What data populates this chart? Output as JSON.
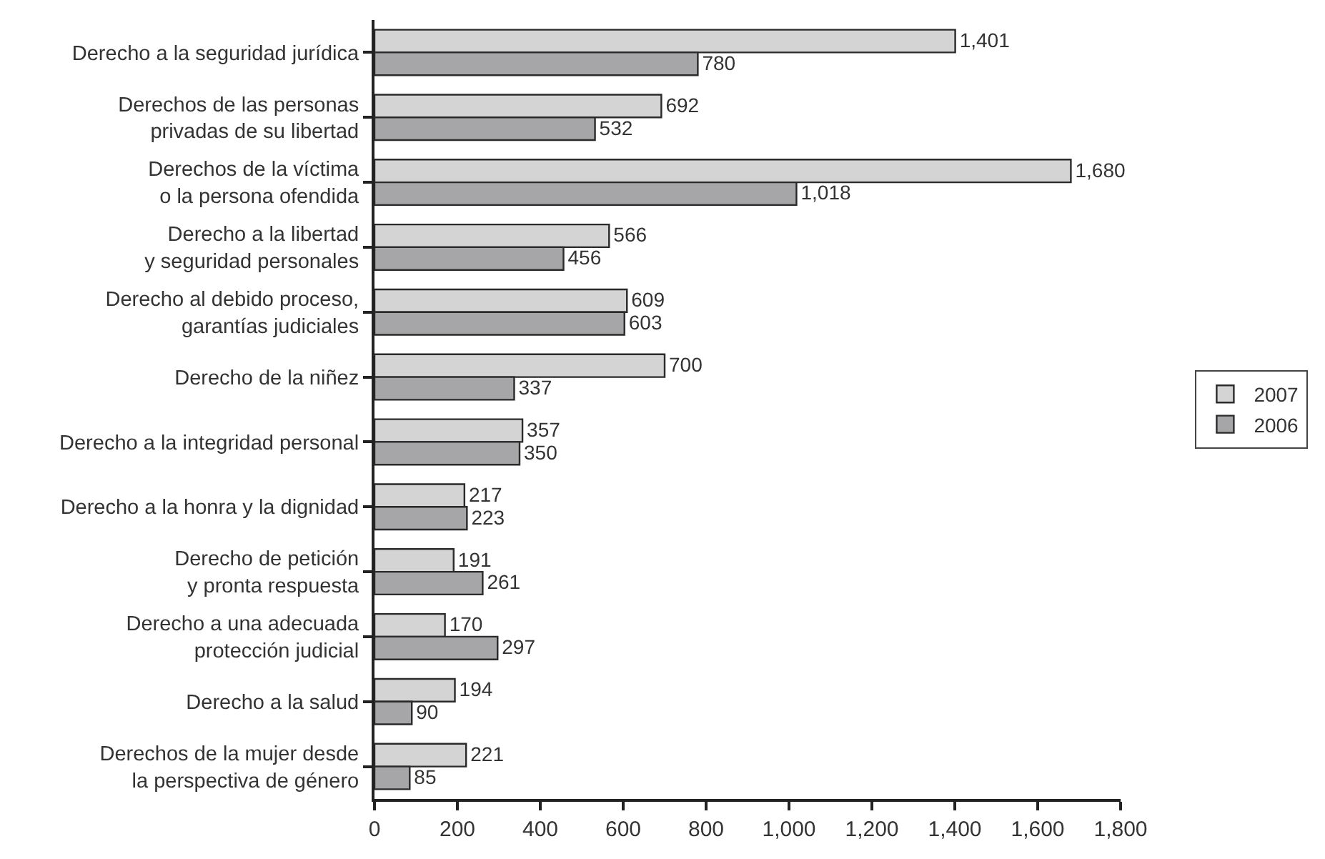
{
  "chart_data": {
    "type": "bar",
    "orientation": "horizontal",
    "categories": [
      "Derecho a la seguridad jurídica",
      "Derechos de las personas\nprivadas de su libertad",
      "Derechos de la víctima\no la persona ofendida",
      "Derecho a la libertad\ny seguridad personales",
      "Derecho al debido proceso,\ngarantías judiciales",
      "Derecho de la niñez",
      "Derecho a la integridad personal",
      "Derecho a la honra y la dignidad",
      "Derecho de petición\ny pronta respuesta",
      "Derecho a una adecuada\nprotección judicial",
      "Derecho a la salud",
      "Derechos de la mujer desde\nla perspectiva de género"
    ],
    "series": [
      {
        "name": "2007",
        "color": "#d4d4d4",
        "values": [
          1401,
          692,
          1680,
          566,
          609,
          700,
          357,
          217,
          191,
          170,
          194,
          221
        ],
        "value_labels": [
          "1,401",
          "692",
          "1,680",
          "566",
          "609",
          "700",
          "357",
          "217",
          "191",
          "170",
          "194",
          "221"
        ]
      },
      {
        "name": "2006",
        "color": "#a6a6a8",
        "values": [
          780,
          532,
          1018,
          456,
          603,
          337,
          350,
          223,
          261,
          297,
          90,
          85
        ],
        "value_labels": [
          "780",
          "532",
          "1,018",
          "456",
          "603",
          "337",
          "350",
          "223",
          "261",
          "297",
          "90",
          "85"
        ]
      }
    ],
    "xlim": [
      0,
      1800
    ],
    "xticks": [
      0,
      200,
      400,
      600,
      800,
      {
        "value": 1000,
        "label": "1,000"
      },
      {
        "value": 1200,
        "label": "1,200"
      },
      {
        "value": 1400,
        "label": "1,400"
      },
      {
        "value": 1600,
        "label": "1,600"
      },
      {
        "value": 1800,
        "label": "1,800"
      }
    ],
    "grid": false,
    "legend": "right"
  }
}
